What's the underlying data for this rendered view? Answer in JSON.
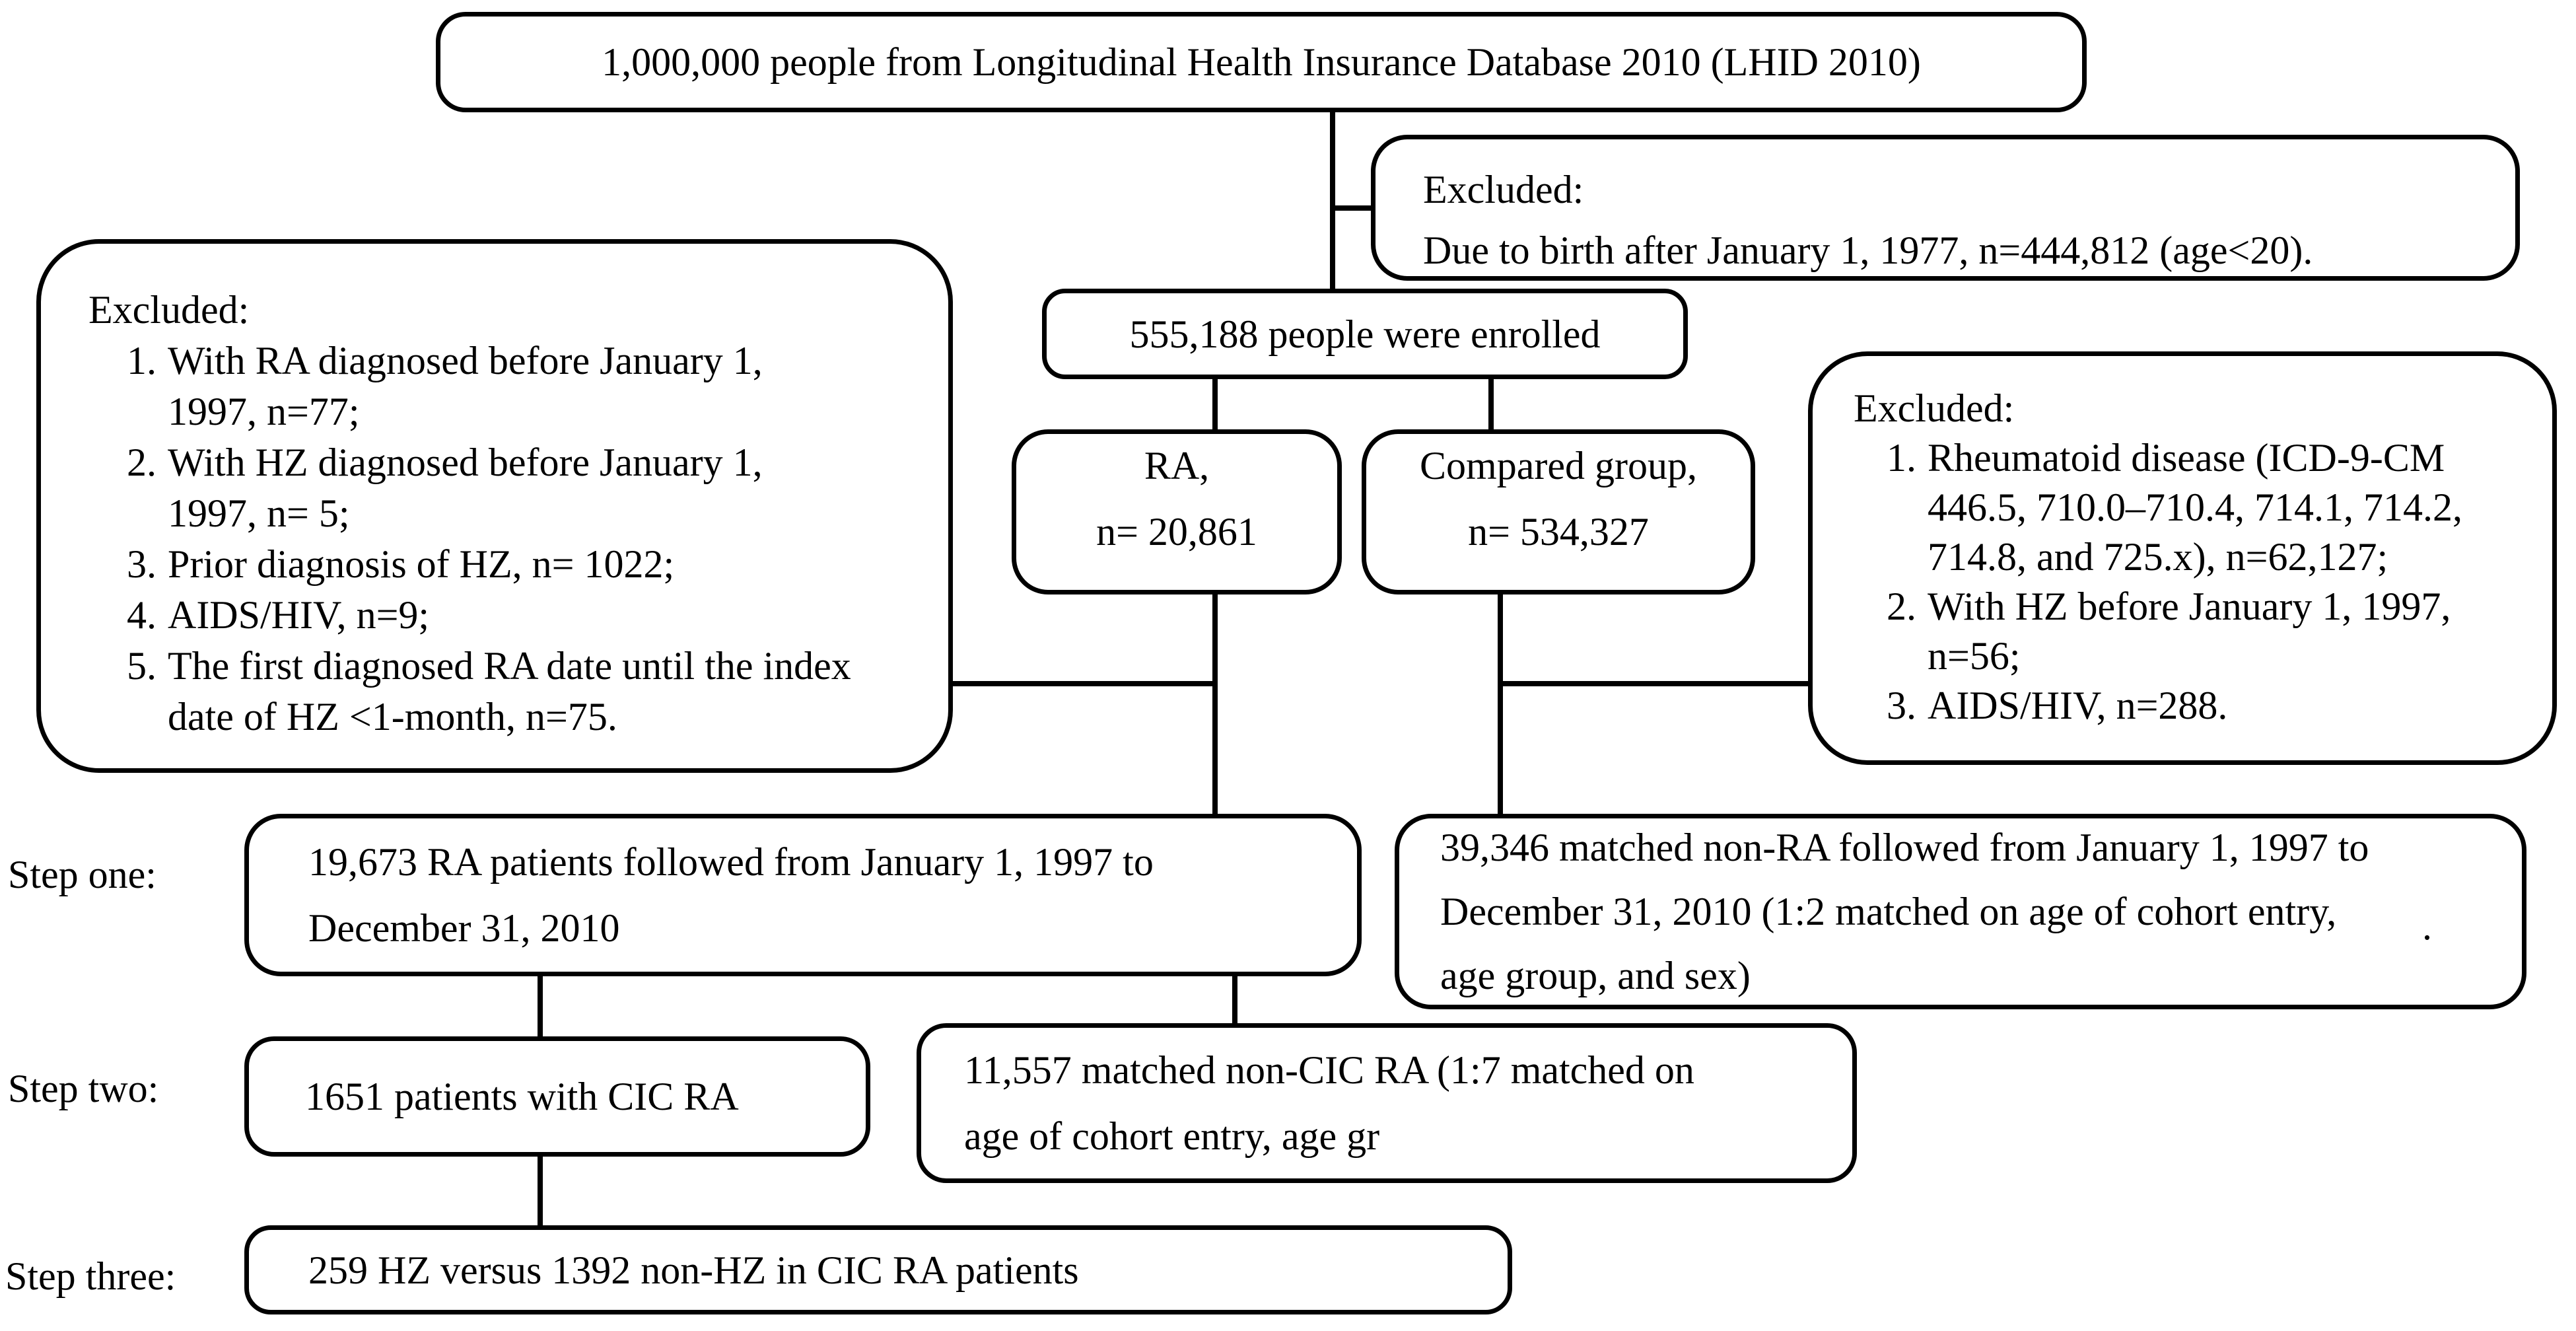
{
  "diagram": {
    "top_box": {
      "text": "1,000,000 people from Longitudinal Health Insurance Database 2010 (LHID 2010)"
    },
    "excluded_birth_box": {
      "title": "Excluded:",
      "line": "Due to birth after January 1, 1977, n=444,812 (age<20)."
    },
    "enrolled_box": {
      "text": "555,188 people were enrolled"
    },
    "ra_box": {
      "line1": "RA,",
      "line2": "n= 20,861"
    },
    "compared_box": {
      "line1": "Compared group,",
      "line2": "n= 534,327"
    },
    "excluded_ra_box": {
      "title": "Excluded:",
      "items": [
        {
          "num": "1.",
          "lines": [
            "With RA diagnosed before January 1,",
            "1997, n=77;"
          ]
        },
        {
          "num": "2.",
          "lines": [
            "With HZ diagnosed before January 1,",
            "1997, n= 5;"
          ]
        },
        {
          "num": "3.",
          "lines": [
            "Prior diagnosis of HZ, n= 1022;"
          ]
        },
        {
          "num": "4.",
          "lines": [
            "AIDS/HIV, n=9;"
          ]
        },
        {
          "num": "5.",
          "lines": [
            "The first diagnosed RA date until the index",
            "date of HZ <1-month, n=75."
          ]
        }
      ]
    },
    "excluded_compared_box": {
      "title": "Excluded:",
      "items": [
        {
          "num": "1.",
          "lines": [
            "Rheumatoid disease (ICD-9-CM",
            "446.5, 710.0–710.4, 714.1, 714.2,",
            "714.8, and 725.x), n=62,127;"
          ]
        },
        {
          "num": "2.",
          "lines": [
            "With HZ before January 1, 1997,",
            "n=56;"
          ]
        },
        {
          "num": "3.",
          "lines": [
            "AIDS/HIV, n=288."
          ]
        }
      ]
    },
    "steps": {
      "one": {
        "label": "Step one:",
        "left_box_lines": [
          "19,673 RA patients followed from January 1, 1997 to",
          "December 31, 2010"
        ],
        "right_box_lines": [
          "39,346 matched non-RA followed from January 1, 1997 to",
          "December 31, 2010 (1:2 matched on age of cohort entry,",
          "age group, and sex)"
        ]
      },
      "two": {
        "label": "Step two:",
        "left_box_text": "1651 patients with CIC RA",
        "right_box_lines": [
          "11,557 matched non-CIC RA (1:7 matched on",
          "age of cohort entry, age gr"
        ]
      },
      "three": {
        "label": "Step three:",
        "box_text": "259 HZ versus 1392 non-HZ in CIC RA patients"
      }
    },
    "artifact_dot": ".",
    "colors": {
      "line": "#000000",
      "box_border": "#000000",
      "background": "#ffffff",
      "text": "#000000"
    }
  }
}
